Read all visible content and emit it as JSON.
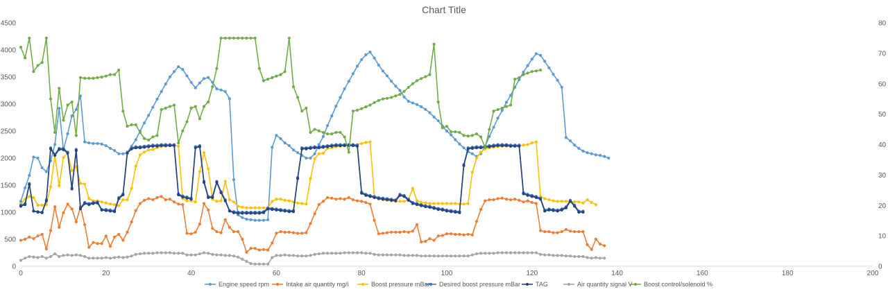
{
  "chart_data": {
    "type": "line",
    "title": "Chart Title",
    "xlim": [
      0,
      200
    ],
    "x_ticks": [
      0,
      20,
      40,
      60,
      80,
      100,
      120,
      140,
      160,
      180,
      200
    ],
    "ylim_left": [
      0,
      4500
    ],
    "y_ticks_left": [
      0,
      500,
      1000,
      1500,
      2000,
      2500,
      3000,
      3500,
      4000,
      4500
    ],
    "ylim_right": [
      0,
      80
    ],
    "y_ticks_right": [
      0,
      10,
      20,
      30,
      40,
      50,
      60,
      70,
      80
    ],
    "grid": false,
    "legend_position": "bottom",
    "series": [
      {
        "name": "Engine speed rpm",
        "color": "#5B9BD5",
        "axis": "left",
        "values": [
          1200,
          1450,
          1680,
          2020,
          2000,
          1820,
          1750,
          1950,
          2250,
          2920,
          2150,
          2450,
          2780,
          2900,
          3150,
          2300,
          2280,
          2270,
          2270,
          2260,
          2230,
          2180,
          2140,
          2080,
          2080,
          2100,
          2220,
          2340,
          2500,
          2650,
          2790,
          2940,
          3090,
          3230,
          3370,
          3500,
          3600,
          3690,
          3640,
          3520,
          3400,
          3300,
          3390,
          3470,
          3490,
          3400,
          3280,
          3260,
          3230,
          3100,
          1600,
          950,
          900,
          870,
          860,
          850,
          850,
          850,
          860,
          2200,
          2420,
          2360,
          2280,
          2230,
          2150,
          2100,
          2050,
          2000,
          2000,
          2080,
          2250,
          2400,
          2600,
          2780,
          2960,
          3120,
          3280,
          3420,
          3560,
          3700,
          3820,
          3910,
          3960,
          3850,
          3720,
          3610,
          3520,
          3420,
          3330,
          3250,
          3130,
          3050,
          3020,
          2990,
          2950,
          2900,
          2840,
          2760,
          2690,
          2590,
          2500,
          2430,
          2340,
          2260,
          2190,
          2120,
          2080,
          2030,
          2080,
          2220,
          2400,
          2570,
          2740,
          2880,
          3030,
          3160,
          3310,
          3450,
          3590,
          3710,
          3830,
          3930,
          3900,
          3790,
          3670,
          3550,
          3440,
          3310,
          2380,
          2320,
          2240,
          2180,
          2130,
          2100,
          2080,
          2060,
          2050,
          2030,
          2000
        ]
      },
      {
        "name": "Intake air quantity mg/i",
        "color": "#ED7D31",
        "axis": "left",
        "values": [
          480,
          500,
          540,
          510,
          560,
          590,
          320,
          660,
          1100,
          720,
          990,
          1150,
          1060,
          820,
          1100,
          770,
          350,
          440,
          420,
          420,
          560,
          370,
          540,
          590,
          480,
          630,
          820,
          1030,
          1160,
          1220,
          1250,
          1230,
          1270,
          1290,
          1230,
          1240,
          1190,
          1150,
          1140,
          610,
          600,
          630,
          780,
          1160,
          1040,
          700,
          640,
          620,
          860,
          720,
          640,
          640,
          500,
          260,
          330,
          330,
          300,
          310,
          300,
          430,
          610,
          640,
          630,
          630,
          620,
          610,
          610,
          620,
          790,
          970,
          1140,
          1200,
          1270,
          1260,
          1240,
          1250,
          1240,
          1270,
          1230,
          1210,
          1200,
          1180,
          1150,
          850,
          600,
          610,
          620,
          630,
          630,
          630,
          640,
          630,
          650,
          770,
          450,
          460,
          510,
          480,
          560,
          570,
          600,
          600,
          590,
          590,
          580,
          590,
          580,
          830,
          1050,
          1210,
          1230,
          1230,
          1250,
          1260,
          1240,
          1230,
          1240,
          1220,
          1190,
          1210,
          1180,
          1160,
          660,
          640,
          640,
          620,
          620,
          640,
          680,
          650,
          640,
          640,
          640,
          400,
          310,
          500,
          410,
          380
        ]
      },
      {
        "name": "Boost pressure mBar",
        "color": "#FFC000",
        "axis": "left",
        "values": [
          1150,
          1240,
          1290,
          1270,
          1130,
          1130,
          1140,
          1470,
          2050,
          1490,
          2010,
          2090,
          1770,
          1840,
          1530,
          1520,
          1250,
          1210,
          1210,
          1190,
          1170,
          1150,
          1140,
          1120,
          1230,
          1230,
          1440,
          1850,
          2060,
          2110,
          2150,
          2160,
          2190,
          2210,
          2220,
          2230,
          2240,
          2220,
          1250,
          1210,
          1210,
          1190,
          1750,
          2100,
          1800,
          1240,
          1200,
          1210,
          1570,
          1230,
          1190,
          1110,
          1090,
          1080,
          1080,
          1080,
          1080,
          1080,
          1080,
          1200,
          1240,
          1240,
          1220,
          1210,
          1190,
          1170,
          1160,
          1150,
          1620,
          1990,
          2080,
          2090,
          2180,
          2190,
          2210,
          2220,
          2230,
          2240,
          2250,
          2250,
          2270,
          2290,
          2300,
          1290,
          1250,
          1230,
          1220,
          1210,
          1200,
          1200,
          1200,
          1230,
          1440,
          1210,
          1180,
          1170,
          1160,
          1160,
          1160,
          1160,
          1160,
          1160,
          1160,
          1150,
          1150,
          1160,
          1740,
          2000,
          2110,
          2170,
          2190,
          2200,
          2210,
          2220,
          2220,
          2230,
          2230,
          2230,
          2240,
          2250,
          2280,
          2300,
          1290,
          1250,
          1230,
          1210,
          1200,
          1200,
          1200,
          1200,
          1190,
          1190,
          1170,
          1230,
          1180,
          1140
        ]
      },
      {
        "name": "Desired boost pressure mBar",
        "color": "#4472C4",
        "axis": "left",
        "values": [
          1130,
          1160,
          1530,
          1020,
          1010,
          1000,
          1230,
          2190,
          2070,
          2180,
          2180,
          2110,
          1450,
          2160,
          1080,
          1180,
          1160,
          1180,
          1190,
          1050,
          1050,
          1040,
          1030,
          1270,
          1340,
          2110,
          2190,
          2210,
          2210,
          2220,
          2230,
          2240,
          2240,
          2250,
          2250,
          2250,
          2250,
          1340,
          1300,
          1280,
          1260,
          2210,
          2230,
          1570,
          1290,
          1290,
          1570,
          1380,
          1230,
          1030,
          1010,
          1000,
          1000,
          1000,
          1000,
          1000,
          1000,
          1010,
          1080,
          1070,
          1060,
          1050,
          1040,
          1030,
          1030,
          1640,
          2190,
          2190,
          2200,
          2210,
          2210,
          2220,
          2230,
          2240,
          2250,
          2250,
          2250,
          2250,
          2250,
          2240,
          1370,
          1330,
          1310,
          1290,
          1270,
          1260,
          1250,
          1240,
          1230,
          1330,
          1310,
          1240,
          1180,
          1160,
          1140,
          1120,
          1110,
          1090,
          1070,
          1060,
          1040,
          1030,
          1020,
          1010,
          1880,
          2190,
          2200,
          2210,
          2210,
          2220,
          2230,
          2240,
          2250,
          2250,
          2250,
          2240,
          2240,
          2240,
          1360,
          1330,
          1310,
          1290,
          1260,
          1040,
          1060,
          1050,
          1040,
          1060,
          1100,
          1220,
          1130,
          1020,
          1020
        ]
      },
      {
        "name": "TAG",
        "color": "#264478",
        "axis": "left",
        "values": [
          1110,
          1140,
          1510,
          1020,
          1000,
          990,
          1210,
          2170,
          2050,
          2160,
          2160,
          2090,
          1430,
          2140,
          1060,
          1160,
          1140,
          1160,
          1170,
          1040,
          1030,
          1020,
          1010,
          1250,
          1320,
          2090,
          2170,
          2190,
          2190,
          2200,
          2210,
          2220,
          2220,
          2230,
          2230,
          2230,
          2230,
          1320,
          1280,
          1260,
          1240,
          2190,
          2210,
          1550,
          1270,
          1270,
          1550,
          1360,
          1210,
          1020,
          990,
          980,
          980,
          980,
          980,
          980,
          980,
          990,
          1060,
          1050,
          1040,
          1030,
          1020,
          1010,
          1010,
          1620,
          2170,
          2170,
          2180,
          2190,
          2190,
          2200,
          2210,
          2220,
          2230,
          2230,
          2230,
          2230,
          2230,
          2220,
          1350,
          1310,
          1290,
          1270,
          1250,
          1240,
          1230,
          1220,
          1210,
          1310,
          1290,
          1220,
          1160,
          1140,
          1120,
          1100,
          1090,
          1070,
          1050,
          1040,
          1020,
          1010,
          1000,
          990,
          1860,
          2170,
          2180,
          2190,
          2190,
          2200,
          2210,
          2220,
          2230,
          2230,
          2230,
          2220,
          2220,
          2220,
          1340,
          1310,
          1290,
          1270,
          1240,
          1020,
          1040,
          1030,
          1020,
          1040,
          1080,
          1200,
          1110,
          1000,
          1000
        ]
      },
      {
        "name": "Air quantity signal V",
        "color": "#A5A5A5",
        "axis": "left",
        "values": [
          110,
          150,
          180,
          170,
          160,
          180,
          150,
          180,
          230,
          180,
          200,
          210,
          200,
          210,
          200,
          180,
          150,
          150,
          150,
          150,
          160,
          150,
          160,
          170,
          160,
          170,
          190,
          220,
          230,
          240,
          240,
          240,
          250,
          250,
          250,
          250,
          240,
          240,
          240,
          210,
          210,
          210,
          230,
          250,
          240,
          220,
          210,
          210,
          200,
          200,
          190,
          170,
          130,
          90,
          50,
          40,
          40,
          40,
          40,
          160,
          200,
          200,
          210,
          200,
          200,
          190,
          190,
          190,
          200,
          220,
          230,
          240,
          240,
          240,
          240,
          240,
          250,
          250,
          250,
          250,
          250,
          240,
          240,
          220,
          210,
          210,
          210,
          210,
          210,
          210,
          200,
          200,
          200,
          200,
          190,
          190,
          190,
          190,
          190,
          190,
          190,
          190,
          190,
          190,
          190,
          190,
          210,
          230,
          240,
          240,
          240,
          240,
          250,
          250,
          250,
          250,
          250,
          250,
          250,
          250,
          250,
          250,
          220,
          210,
          210,
          200,
          200,
          200,
          190,
          190,
          180,
          180,
          180,
          160,
          150,
          160,
          150,
          150
        ]
      },
      {
        "name": "Boost control/solenoid %",
        "color": "#70AD47",
        "axis": "right",
        "values": [
          72,
          68.5,
          75,
          64,
          66,
          67,
          75,
          55,
          44,
          58.5,
          48,
          53,
          54,
          43,
          62,
          61.8,
          61.8,
          61.8,
          62,
          62.2,
          62.5,
          63,
          63,
          64.5,
          51,
          46,
          46.5,
          46.5,
          44,
          42,
          41.5,
          42.5,
          43,
          51.5,
          52,
          52.5,
          53,
          40.5,
          44.5,
          47.5,
          52,
          52.5,
          48.5,
          52.5,
          54,
          59,
          65,
          75,
          75,
          75,
          75,
          75,
          75,
          75,
          75,
          75,
          65,
          61,
          61.5,
          62,
          62.5,
          63,
          64,
          75,
          59,
          55.5,
          51,
          52,
          44,
          45,
          44.5,
          44,
          43.5,
          43.5,
          44,
          44,
          42.5,
          37.5,
          51,
          51.3,
          51.8,
          52.4,
          53,
          53.8,
          54.5,
          55,
          55.2,
          55.5,
          56,
          56.5,
          57.5,
          58.8,
          60,
          61,
          61.7,
          62.3,
          63,
          73,
          54,
          45.5,
          46,
          44.2,
          44.2,
          44,
          43,
          42.8,
          43,
          43.5,
          42.5,
          39,
          45,
          51,
          51.5,
          52,
          52.5,
          53,
          61.5,
          62,
          63,
          63.5,
          64,
          64.2,
          64.5
        ]
      }
    ]
  }
}
